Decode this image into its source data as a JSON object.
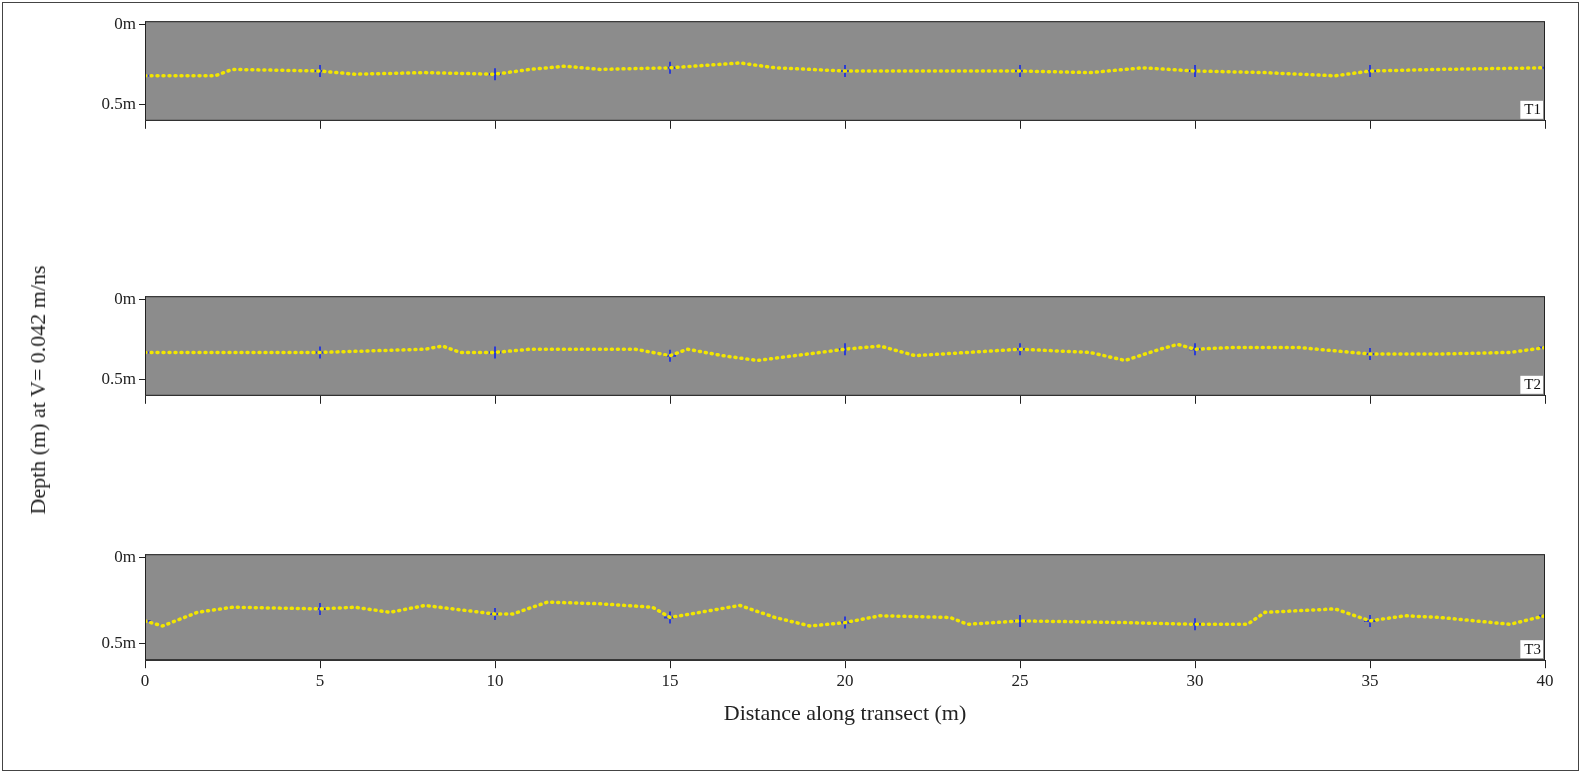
{
  "chart_data": [
    {
      "type": "line",
      "title": "T1",
      "xlim": [
        0,
        40
      ],
      "xticks": [
        0,
        5,
        10,
        15,
        20,
        25,
        30,
        35,
        40
      ],
      "ylim": [
        -0.02,
        0.6
      ],
      "yticks": [
        {
          "value": 0,
          "label": "0m"
        },
        {
          "value": 0.5,
          "label": "0.5m"
        }
      ],
      "grid": false,
      "tick_labels": "y",
      "series": [
        {
          "color": "#f2e600",
          "line_style": "dotted",
          "marker": "none",
          "x": [
            0,
            2,
            2.5,
            5,
            6,
            8,
            10,
            11,
            12,
            13,
            15,
            17,
            18,
            20,
            22,
            25,
            27,
            28.5,
            30,
            32,
            34,
            35,
            37,
            40
          ],
          "values": [
            0.32,
            0.32,
            0.28,
            0.29,
            0.31,
            0.3,
            0.31,
            0.28,
            0.26,
            0.28,
            0.27,
            0.24,
            0.27,
            0.29,
            0.29,
            0.29,
            0.3,
            0.27,
            0.29,
            0.3,
            0.32,
            0.29,
            0.28,
            0.27
          ]
        },
        {
          "color": "#2a3bd6",
          "line_style": "none",
          "marker": "cross",
          "x": [
            0,
            5,
            10,
            15,
            20,
            25,
            30,
            35,
            40
          ],
          "values": [
            0.32,
            0.29,
            0.31,
            0.27,
            0.29,
            0.29,
            0.29,
            0.29,
            0.27
          ]
        }
      ]
    },
    {
      "type": "line",
      "title": "T2",
      "ylabel": "Depth (m) at V= 0.042 m/ns",
      "xlim": [
        0,
        40
      ],
      "xticks": [
        0,
        5,
        10,
        15,
        20,
        25,
        30,
        35,
        40
      ],
      "ylim": [
        -0.02,
        0.6
      ],
      "yticks": [
        {
          "value": 0,
          "label": "0m"
        },
        {
          "value": 0.5,
          "label": "0.5m"
        }
      ],
      "grid": false,
      "tick_labels": "y",
      "series": [
        {
          "color": "#f2e600",
          "line_style": "dotted",
          "marker": "none",
          "x": [
            0,
            5,
            8,
            8.5,
            9,
            10,
            11,
            14,
            15,
            15.5,
            16.5,
            17.5,
            20,
            21,
            22,
            25,
            27,
            28,
            29,
            29.5,
            30,
            31,
            33,
            35,
            37,
            39,
            40
          ],
          "values": [
            0.33,
            0.33,
            0.31,
            0.29,
            0.33,
            0.33,
            0.31,
            0.31,
            0.35,
            0.31,
            0.35,
            0.38,
            0.31,
            0.29,
            0.35,
            0.31,
            0.33,
            0.38,
            0.31,
            0.28,
            0.31,
            0.3,
            0.3,
            0.34,
            0.34,
            0.33,
            0.3
          ]
        },
        {
          "color": "#2a3bd6",
          "line_style": "none",
          "marker": "cross",
          "x": [
            0,
            5,
            10,
            15,
            20,
            25,
            30,
            35,
            40
          ],
          "values": [
            0.33,
            0.33,
            0.33,
            0.35,
            0.31,
            0.31,
            0.31,
            0.34,
            0.3
          ]
        }
      ]
    },
    {
      "type": "line",
      "title": "T3",
      "xlabel": "Distance along transect (m)",
      "xlim": [
        0,
        40
      ],
      "xticks": [
        0,
        5,
        10,
        15,
        20,
        25,
        30,
        35,
        40
      ],
      "ylim": [
        -0.02,
        0.6
      ],
      "yticks": [
        {
          "value": 0,
          "label": "0m"
        },
        {
          "value": 0.5,
          "label": "0.5m"
        }
      ],
      "grid": false,
      "series": [
        {
          "color": "#f2e600",
          "line_style": "dotted",
          "marker": "none",
          "x": [
            0,
            0.5,
            1.5,
            2.5,
            5,
            6,
            7,
            8,
            10,
            10.5,
            11.5,
            13,
            14.5,
            15,
            17,
            18,
            19,
            20,
            21,
            23,
            23.5,
            25,
            28,
            30,
            31.5,
            32,
            34,
            35,
            36,
            37,
            39,
            40
          ],
          "values": [
            0.37,
            0.4,
            0.32,
            0.29,
            0.3,
            0.29,
            0.32,
            0.28,
            0.33,
            0.33,
            0.26,
            0.27,
            0.29,
            0.35,
            0.28,
            0.35,
            0.4,
            0.38,
            0.34,
            0.35,
            0.39,
            0.37,
            0.38,
            0.39,
            0.39,
            0.32,
            0.3,
            0.37,
            0.34,
            0.35,
            0.39,
            0.34
          ]
        },
        {
          "color": "#2a3bd6",
          "line_style": "none",
          "marker": "cross",
          "x": [
            0,
            5,
            10,
            15,
            20,
            25,
            30,
            35,
            40
          ],
          "values": [
            0.37,
            0.3,
            0.33,
            0.35,
            0.38,
            0.37,
            0.39,
            0.37,
            0.34
          ]
        }
      ]
    }
  ]
}
